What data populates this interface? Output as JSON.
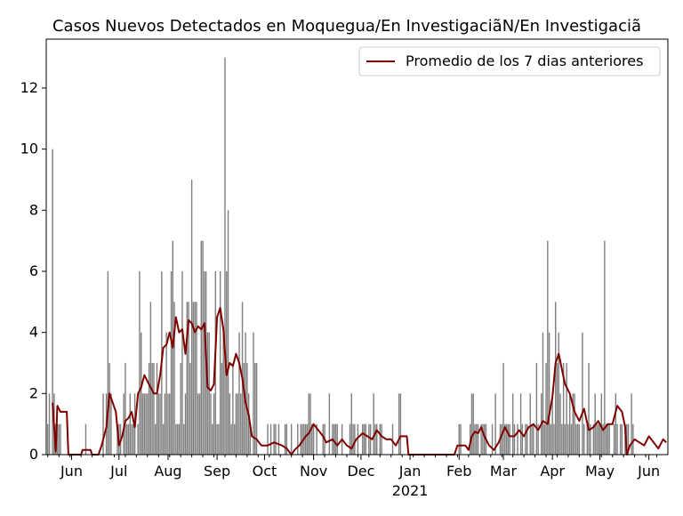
{
  "chart_data": {
    "type": "bar",
    "title": "Casos Nuevos Detectados en Moquegua/En Investigaciã\u0001N/En Investigaciã\u0001",
    "xlabel": "",
    "ylabel": "",
    "x_start": "2020-05-16",
    "x_end": "2021-06-13",
    "ylim": [
      0,
      13.6
    ],
    "yticks": [
      0,
      2,
      4,
      6,
      8,
      10,
      12
    ],
    "xticks": [
      {
        "date": "2020-06-01",
        "label": "Jun"
      },
      {
        "date": "2020-07-01",
        "label": "Jul"
      },
      {
        "date": "2020-08-01",
        "label": "Aug"
      },
      {
        "date": "2020-09-01",
        "label": "Sep"
      },
      {
        "date": "2020-10-01",
        "label": "Oct"
      },
      {
        "date": "2020-11-01",
        "label": "Nov"
      },
      {
        "date": "2020-12-01",
        "label": "Dec"
      },
      {
        "date": "2021-01-01",
        "label": "Jan"
      },
      {
        "date": "2021-02-01",
        "label": "Feb"
      },
      {
        "date": "2021-03-01",
        "label": "Mar"
      },
      {
        "date": "2021-04-01",
        "label": "Apr"
      },
      {
        "date": "2021-05-01",
        "label": "May"
      },
      {
        "date": "2021-06-01",
        "label": "Jun"
      }
    ],
    "xtick_year_label": "2021",
    "grid": false,
    "legend_position": "top-right",
    "series": [
      {
        "name": "",
        "type": "bar",
        "color": "#808080",
        "start_date": "2020-05-17",
        "values": [
          1,
          2,
          0,
          10,
          2,
          1,
          1,
          1,
          1,
          0,
          0,
          0,
          0,
          0,
          0,
          0,
          0,
          0,
          0,
          0,
          0,
          0,
          0,
          0,
          1,
          0,
          0,
          0,
          0,
          0,
          0,
          0,
          0,
          0,
          0,
          2,
          0,
          2,
          6,
          3,
          2,
          0,
          0,
          0,
          1,
          1,
          1,
          0,
          2,
          3,
          1,
          1,
          2,
          1,
          1,
          2,
          0,
          1,
          6,
          4,
          2,
          2,
          2,
          2,
          3,
          5,
          3,
          3,
          1,
          3,
          2,
          2,
          6,
          1,
          2,
          4,
          2,
          2,
          6,
          7,
          5,
          1,
          1,
          1,
          3,
          6,
          1,
          2,
          5,
          5,
          3,
          9,
          5,
          5,
          5,
          2,
          2,
          7,
          7,
          6,
          6,
          4,
          4,
          2,
          1,
          2,
          6,
          1,
          1,
          6,
          3,
          4,
          13,
          6,
          8,
          2,
          1,
          3,
          1,
          2,
          2,
          4,
          2,
          5,
          3,
          4,
          3,
          2,
          1,
          0,
          4,
          3,
          3,
          0,
          0,
          0,
          0,
          0,
          0,
          1,
          0,
          1,
          0,
          1,
          1,
          0,
          1,
          0,
          0,
          0,
          1,
          1,
          0,
          0,
          1,
          0,
          0,
          0,
          1,
          0,
          1,
          1,
          1,
          1,
          1,
          2,
          2,
          1,
          1,
          0,
          1,
          0,
          0,
          0,
          1,
          1,
          0,
          0,
          2,
          0,
          1,
          1,
          1,
          1,
          0,
          0,
          1,
          0,
          0,
          0,
          0,
          1,
          2,
          1,
          1,
          0,
          1,
          0,
          0,
          1,
          1,
          1,
          0,
          1,
          1,
          0,
          2,
          1,
          1,
          0,
          1,
          1,
          0,
          0,
          0,
          0,
          0,
          0,
          1,
          0,
          0,
          0,
          2,
          2,
          0,
          0,
          0,
          0,
          0,
          0,
          0,
          0,
          0,
          0,
          0,
          0,
          0,
          0,
          0,
          0,
          0,
          0,
          0,
          0,
          0,
          0,
          0,
          0,
          0,
          0,
          0,
          0,
          0,
          0,
          0,
          0,
          0,
          0,
          0,
          0,
          1,
          1,
          0,
          0,
          0,
          0,
          0,
          1,
          2,
          2,
          1,
          1,
          1,
          0,
          1,
          1,
          1,
          1,
          0,
          0,
          0,
          1,
          0,
          2,
          0,
          0,
          1,
          1,
          3,
          1,
          1,
          1,
          1,
          0,
          2,
          1,
          0,
          1,
          0,
          2,
          1,
          0,
          1,
          1,
          0,
          2,
          1,
          1,
          0,
          3,
          1,
          0,
          2,
          4,
          1,
          3,
          7,
          4,
          1,
          2,
          1,
          5,
          3,
          4,
          2,
          1,
          3,
          1,
          3,
          1,
          2,
          1,
          2,
          2,
          1,
          1,
          1,
          0,
          4,
          1,
          0,
          1,
          3,
          1,
          0,
          1,
          2,
          1,
          1,
          1,
          2,
          1,
          7,
          1,
          1,
          1,
          0,
          0,
          1,
          2,
          1,
          0,
          1,
          1,
          0,
          1,
          1,
          1,
          0,
          2,
          1,
          0
        ]
      },
      {
        "name": "Promedio de los 7 dias anteriores",
        "type": "line",
        "color": "#800000",
        "points": [
          [
            "2020-05-20",
            1.7
          ],
          [
            "2020-05-22",
            0.1
          ],
          [
            "2020-05-23",
            1.6
          ],
          [
            "2020-05-25",
            1.4
          ],
          [
            "2020-05-29",
            1.4
          ],
          [
            "2020-05-30",
            0
          ],
          [
            "2020-06-07",
            0
          ],
          [
            "2020-06-08",
            0.15
          ],
          [
            "2020-06-13",
            0.15
          ],
          [
            "2020-06-14",
            0
          ],
          [
            "2020-06-18",
            0
          ],
          [
            "2020-06-20",
            0.3
          ],
          [
            "2020-06-23",
            0.9
          ],
          [
            "2020-06-25",
            2.0
          ],
          [
            "2020-06-27",
            1.7
          ],
          [
            "2020-06-29",
            1.4
          ],
          [
            "2020-07-01",
            0.3
          ],
          [
            "2020-07-03",
            0.6
          ],
          [
            "2020-07-05",
            1.1
          ],
          [
            "2020-07-07",
            1.2
          ],
          [
            "2020-07-09",
            1.4
          ],
          [
            "2020-07-11",
            0.9
          ],
          [
            "2020-07-13",
            2.0
          ],
          [
            "2020-07-15",
            2.2
          ],
          [
            "2020-07-17",
            2.6
          ],
          [
            "2020-07-19",
            2.4
          ],
          [
            "2020-07-21",
            2.2
          ],
          [
            "2020-07-23",
            2.0
          ],
          [
            "2020-07-25",
            2.0
          ],
          [
            "2020-07-27",
            2.6
          ],
          [
            "2020-07-29",
            3.5
          ],
          [
            "2020-07-31",
            3.6
          ],
          [
            "2020-08-02",
            4.0
          ],
          [
            "2020-08-04",
            3.5
          ],
          [
            "2020-08-06",
            4.5
          ],
          [
            "2020-08-08",
            4.0
          ],
          [
            "2020-08-10",
            4.1
          ],
          [
            "2020-08-12",
            3.3
          ],
          [
            "2020-08-14",
            4.4
          ],
          [
            "2020-08-16",
            4.3
          ],
          [
            "2020-08-18",
            4.0
          ],
          [
            "2020-08-20",
            4.2
          ],
          [
            "2020-08-22",
            4.1
          ],
          [
            "2020-08-24",
            4.3
          ],
          [
            "2020-08-26",
            2.2
          ],
          [
            "2020-08-28",
            2.1
          ],
          [
            "2020-08-30",
            2.3
          ],
          [
            "2020-09-01",
            4.5
          ],
          [
            "2020-09-03",
            4.8
          ],
          [
            "2020-09-05",
            4.1
          ],
          [
            "2020-09-07",
            2.6
          ],
          [
            "2020-09-09",
            3.0
          ],
          [
            "2020-09-11",
            2.9
          ],
          [
            "2020-09-13",
            3.3
          ],
          [
            "2020-09-15",
            3.0
          ],
          [
            "2020-09-17",
            2.5
          ],
          [
            "2020-09-19",
            1.7
          ],
          [
            "2020-09-21",
            1.3
          ],
          [
            "2020-09-23",
            0.6
          ],
          [
            "2020-09-26",
            0.5
          ],
          [
            "2020-09-29",
            0.3
          ],
          [
            "2020-10-03",
            0.3
          ],
          [
            "2020-10-07",
            0.4
          ],
          [
            "2020-10-12",
            0.3
          ],
          [
            "2020-10-15",
            0.2
          ],
          [
            "2020-10-18",
            0
          ],
          [
            "2020-10-20",
            0.15
          ],
          [
            "2020-10-23",
            0.3
          ],
          [
            "2020-10-27",
            0.6
          ],
          [
            "2020-10-29",
            0.7
          ],
          [
            "2020-11-01",
            1.0
          ],
          [
            "2020-11-04",
            0.8
          ],
          [
            "2020-11-07",
            0.6
          ],
          [
            "2020-11-09",
            0.4
          ],
          [
            "2020-11-13",
            0.5
          ],
          [
            "2020-11-16",
            0.3
          ],
          [
            "2020-11-19",
            0.5
          ],
          [
            "2020-11-22",
            0.3
          ],
          [
            "2020-11-25",
            0.2
          ],
          [
            "2020-11-28",
            0.5
          ],
          [
            "2020-12-02",
            0.7
          ],
          [
            "2020-12-05",
            0.6
          ],
          [
            "2020-12-08",
            0.5
          ],
          [
            "2020-12-11",
            0.8
          ],
          [
            "2020-12-14",
            0.6
          ],
          [
            "2020-12-17",
            0.5
          ],
          [
            "2020-12-20",
            0.5
          ],
          [
            "2020-12-23",
            0.3
          ],
          [
            "2020-12-26",
            0.6
          ],
          [
            "2020-12-30",
            0.6
          ],
          [
            "2020-12-31",
            0
          ],
          [
            "2021-01-29",
            0
          ],
          [
            "2021-01-31",
            0.3
          ],
          [
            "2021-02-05",
            0.3
          ],
          [
            "2021-02-07",
            0.15
          ],
          [
            "2021-02-09",
            0.6
          ],
          [
            "2021-02-11",
            0.75
          ],
          [
            "2021-02-13",
            0.7
          ],
          [
            "2021-02-15",
            0.9
          ],
          [
            "2021-02-17",
            0.6
          ],
          [
            "2021-02-20",
            0.3
          ],
          [
            "2021-02-23",
            0.15
          ],
          [
            "2021-02-26",
            0.4
          ],
          [
            "2021-03-02",
            0.9
          ],
          [
            "2021-03-05",
            0.6
          ],
          [
            "2021-03-08",
            0.6
          ],
          [
            "2021-03-11",
            0.8
          ],
          [
            "2021-03-14",
            0.6
          ],
          [
            "2021-03-17",
            0.9
          ],
          [
            "2021-03-20",
            1.0
          ],
          [
            "2021-03-23",
            0.8
          ],
          [
            "2021-03-26",
            1.1
          ],
          [
            "2021-03-29",
            1.0
          ],
          [
            "2021-04-01",
            1.9
          ],
          [
            "2021-04-03",
            3.0
          ],
          [
            "2021-04-05",
            3.3
          ],
          [
            "2021-04-07",
            2.8
          ],
          [
            "2021-04-09",
            2.3
          ],
          [
            "2021-04-12",
            2.0
          ],
          [
            "2021-04-15",
            1.4
          ],
          [
            "2021-04-18",
            1.1
          ],
          [
            "2021-04-21",
            1.5
          ],
          [
            "2021-04-24",
            0.8
          ],
          [
            "2021-04-27",
            0.9
          ],
          [
            "2021-04-30",
            1.1
          ],
          [
            "2021-05-03",
            0.8
          ],
          [
            "2021-05-06",
            1.0
          ],
          [
            "2021-05-09",
            1.0
          ],
          [
            "2021-05-12",
            1.6
          ],
          [
            "2021-05-15",
            1.4
          ],
          [
            "2021-05-17",
            0.9
          ],
          [
            "2021-05-18",
            0
          ],
          [
            "2021-05-20",
            0.3
          ],
          [
            "2021-05-23",
            0.5
          ],
          [
            "2021-05-26",
            0.4
          ],
          [
            "2021-05-29",
            0.3
          ],
          [
            "2021-06-01",
            0.6
          ],
          [
            "2021-06-04",
            0.4
          ],
          [
            "2021-06-07",
            0.2
          ],
          [
            "2021-06-10",
            0.5
          ],
          [
            "2021-06-12",
            0.4
          ]
        ]
      }
    ]
  }
}
